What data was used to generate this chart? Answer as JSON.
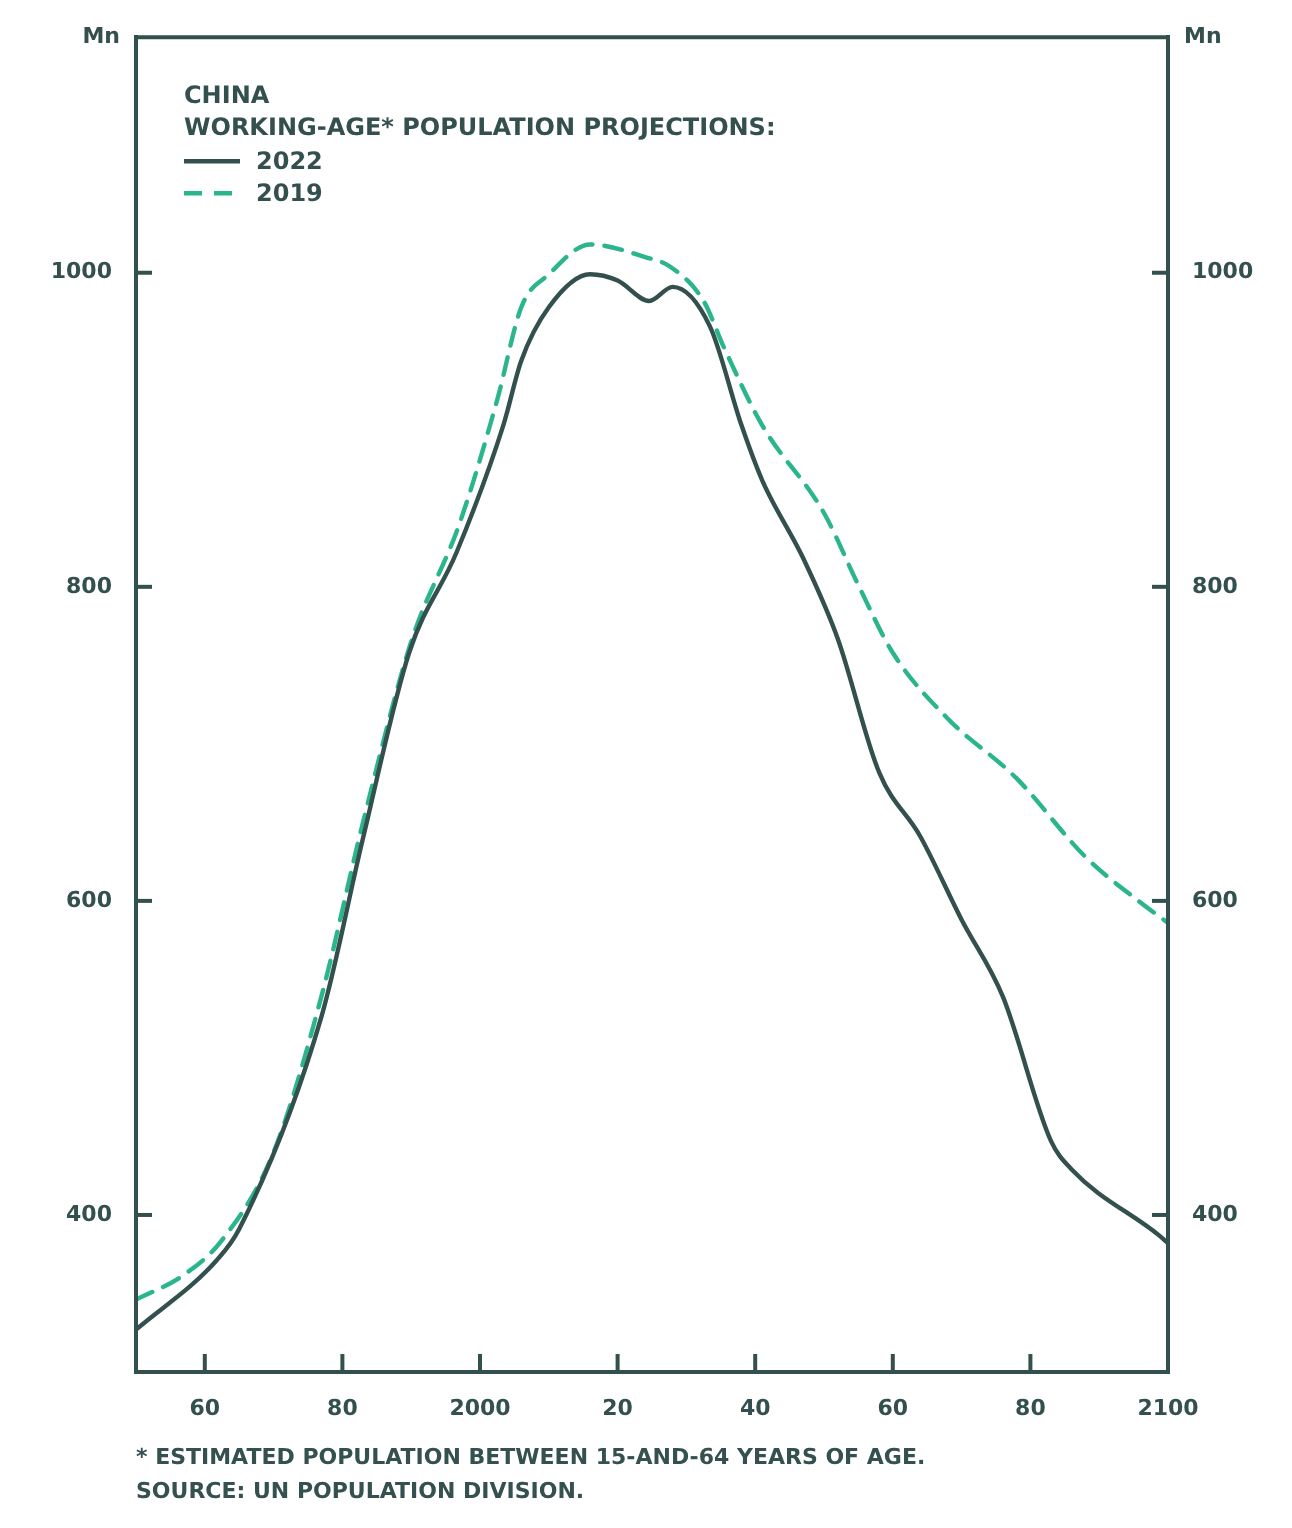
{
  "chart_data": {
    "type": "line",
    "legend_title": "CHINA\nWORKING-AGE* POPULATION PROJECTIONS:",
    "legend": "top left",
    "ylabel": "Mn",
    "y2label": "Mn",
    "marker": "none",
    "xlim": [
      1950,
      2100
    ],
    "xticks": [
      {
        "value": 1960,
        "label": "60"
      },
      {
        "value": 1980,
        "label": "80"
      },
      2000,
      {
        "value": 2020,
        "label": "20"
      },
      {
        "value": 2040,
        "label": "40"
      },
      {
        "value": 2060,
        "label": "60"
      },
      {
        "value": 2080,
        "label": "80"
      },
      2100
    ],
    "ylim": [
      300,
      1150
    ],
    "yticks": [
      400,
      600,
      800,
      1000
    ],
    "y2lim": [
      300,
      1150
    ],
    "y2ticks": [
      400,
      600,
      800,
      1000
    ],
    "series": [
      {
        "name": "2022",
        "color": "#33504f",
        "line_style": "solid",
        "x": [
          1950,
          1961.7,
          1965,
          1977,
          1983,
          1989.7,
          1996.6,
          2003.4,
          2006,
          2010,
          2016,
          2020,
          2024.6,
          2028,
          2033.4,
          2038,
          2041,
          2047,
          2052,
          2058,
          2064,
          2070,
          2076,
          2083,
          2086,
          2098.7,
          2100
        ],
        "values": [
          327,
          371,
          391,
          527,
          640,
          758,
          822,
          903,
          944,
          978,
          999,
          995,
          982,
          991,
          966,
          903,
          868,
          818,
          767,
          682,
          641,
          588,
          539,
          447,
          429,
          387,
          382
        ]
      },
      {
        "name": "2019",
        "color": "#2bb58c",
        "line_style": "dashed",
        "x": [
          1950,
          1957,
          1962.5,
          1970,
          1977,
          1983,
          1990,
          1997,
          2002.5,
          2006,
          2010,
          2016,
          2024,
          2027.6,
          2032.5,
          2035.4,
          2041,
          2050,
          2055,
          2060,
          2068,
          2078,
          2088,
          2096,
          2100
        ],
        "values": [
          346,
          362,
          384,
          440,
          540,
          650,
          765,
          840,
          919,
          978,
          999,
          1018,
          1010,
          1004,
          982,
          953,
          903,
          847,
          801,
          758,
          716,
          678,
          628,
          599,
          586
        ]
      }
    ],
    "annotations": [
      "* ESTIMATED POPULATION BETWEEN 15-AND-64 YEARS OF AGE.",
      "SOURCE: UN POPULATION DIVISION."
    ]
  }
}
